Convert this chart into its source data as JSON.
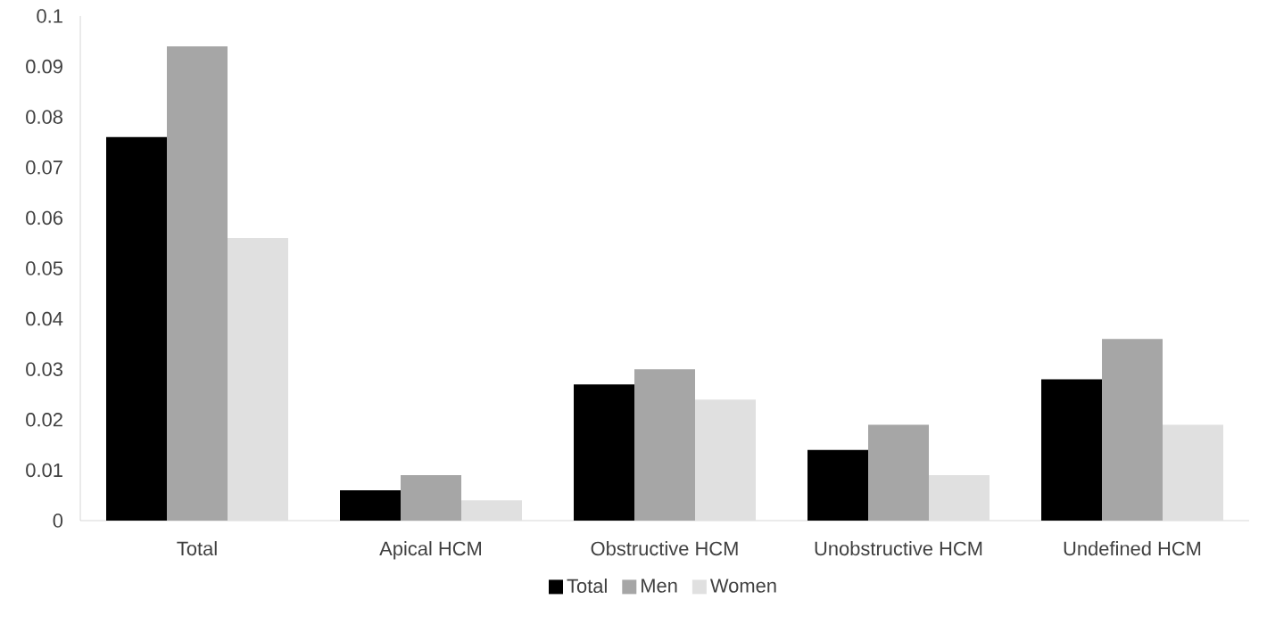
{
  "chart_data": {
    "type": "bar",
    "categories": [
      "Total",
      "Apical HCM",
      "Obstructive HCM",
      "Unobstructive HCM",
      "Undefined HCM"
    ],
    "series": [
      {
        "name": "Total",
        "color": "#000000",
        "values": [
          0.076,
          0.006,
          0.027,
          0.014,
          0.028
        ]
      },
      {
        "name": "Men",
        "color": "#a6a6a6",
        "values": [
          0.094,
          0.009,
          0.03,
          0.019,
          0.036
        ]
      },
      {
        "name": "Women",
        "color": "#e0e0e0",
        "values": [
          0.056,
          0.004,
          0.024,
          0.009,
          0.019
        ]
      }
    ],
    "ylim": [
      0,
      0.1
    ],
    "yticks": [
      0,
      0.01,
      0.02,
      0.03,
      0.04,
      0.05,
      0.06,
      0.07,
      0.08,
      0.09,
      0.1
    ],
    "legend": "bottom"
  }
}
